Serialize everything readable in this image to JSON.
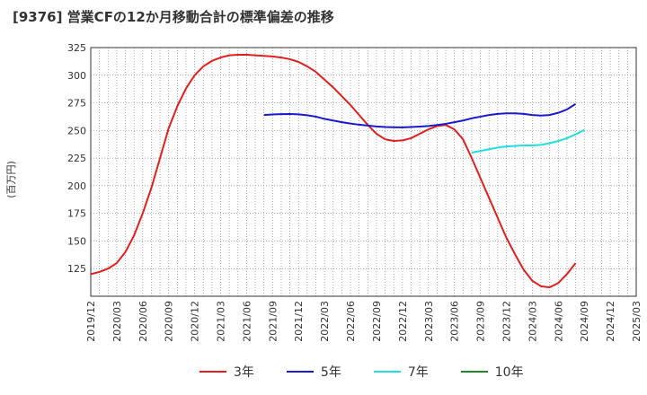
{
  "chart_data": {
    "type": "line",
    "title": "[9376]  営業CFの12か月移動合計の標準偏差の推移",
    "ylabel": "(百万円)",
    "ylim": [
      100,
      325
    ],
    "yticks": [
      125,
      150,
      175,
      200,
      225,
      250,
      275,
      300,
      325
    ],
    "x_start": "2019-12",
    "x_end": "2025-03",
    "xtick_labels": [
      "2019/12",
      "2020/03",
      "2020/06",
      "2020/09",
      "2020/12",
      "2021/03",
      "2021/06",
      "2021/09",
      "2021/12",
      "2022/03",
      "2022/06",
      "2022/09",
      "2022/12",
      "2023/03",
      "2023/06",
      "2023/09",
      "2023/12",
      "2024/03",
      "2024/06",
      "2024/09",
      "2024/12",
      "2025/03"
    ],
    "grid": true,
    "legend_position": "bottom",
    "series": [
      {
        "name": "3年",
        "color": "#e02020",
        "points": [
          [
            "2019-12",
            120
          ],
          [
            "2020-01",
            122
          ],
          [
            "2020-02",
            125
          ],
          [
            "2020-03",
            130
          ],
          [
            "2020-04",
            140
          ],
          [
            "2020-05",
            155
          ],
          [
            "2020-06",
            175
          ],
          [
            "2020-07",
            198
          ],
          [
            "2020-08",
            225
          ],
          [
            "2020-09",
            252
          ],
          [
            "2020-10",
            272
          ],
          [
            "2020-11",
            288
          ],
          [
            "2020-12",
            300
          ],
          [
            "2021-01",
            308
          ],
          [
            "2021-02",
            313
          ],
          [
            "2021-03",
            316
          ],
          [
            "2021-04",
            318
          ],
          [
            "2021-05",
            318.5
          ],
          [
            "2021-06",
            318.5
          ],
          [
            "2021-07",
            318
          ],
          [
            "2021-08",
            317.5
          ],
          [
            "2021-09",
            317
          ],
          [
            "2021-10",
            316
          ],
          [
            "2021-11",
            314.5
          ],
          [
            "2021-12",
            312
          ],
          [
            "2022-01",
            308
          ],
          [
            "2022-02",
            303
          ],
          [
            "2022-03",
            296
          ],
          [
            "2022-04",
            289
          ],
          [
            "2022-05",
            281
          ],
          [
            "2022-06",
            273
          ],
          [
            "2022-07",
            264
          ],
          [
            "2022-08",
            255
          ],
          [
            "2022-09",
            247
          ],
          [
            "2022-10",
            242
          ],
          [
            "2022-11",
            240.5
          ],
          [
            "2022-12",
            241
          ],
          [
            "2023-01",
            243
          ],
          [
            "2023-02",
            247
          ],
          [
            "2023-03",
            251
          ],
          [
            "2023-04",
            254
          ],
          [
            "2023-05",
            255
          ],
          [
            "2023-06",
            251
          ],
          [
            "2023-07",
            242
          ],
          [
            "2023-08",
            225
          ],
          [
            "2023-09",
            207
          ],
          [
            "2023-10",
            189
          ],
          [
            "2023-11",
            171
          ],
          [
            "2023-12",
            153
          ],
          [
            "2024-01",
            138
          ],
          [
            "2024-02",
            124
          ],
          [
            "2024-03",
            114
          ],
          [
            "2024-04",
            109
          ],
          [
            "2024-05",
            108
          ],
          [
            "2024-06",
            112
          ],
          [
            "2024-07",
            120
          ],
          [
            "2024-08",
            130
          ]
        ]
      },
      {
        "name": "5年",
        "color": "#1a1acc",
        "points": [
          [
            "2021-08",
            264
          ],
          [
            "2021-09",
            264.5
          ],
          [
            "2021-10",
            264.8
          ],
          [
            "2021-11",
            264.9
          ],
          [
            "2021-12",
            264.6
          ],
          [
            "2022-01",
            263.8
          ],
          [
            "2022-02",
            262.5
          ],
          [
            "2022-03",
            260.5
          ],
          [
            "2022-04",
            259
          ],
          [
            "2022-05",
            257.5
          ],
          [
            "2022-06",
            256.3
          ],
          [
            "2022-07",
            255.2
          ],
          [
            "2022-08",
            254.4
          ],
          [
            "2022-09",
            253.6
          ],
          [
            "2022-10",
            253.1
          ],
          [
            "2022-11",
            252.9
          ],
          [
            "2022-12",
            252.8
          ],
          [
            "2023-01",
            253.1
          ],
          [
            "2023-02",
            253.5
          ],
          [
            "2023-03",
            254
          ],
          [
            "2023-04",
            255
          ],
          [
            "2023-05",
            256
          ],
          [
            "2023-06",
            257.5
          ],
          [
            "2023-07",
            259
          ],
          [
            "2023-08",
            261
          ],
          [
            "2023-09",
            262.5
          ],
          [
            "2023-10",
            264
          ],
          [
            "2023-11",
            265
          ],
          [
            "2023-12",
            265.5
          ],
          [
            "2024-01",
            265.5
          ],
          [
            "2024-02",
            265
          ],
          [
            "2024-03",
            264
          ],
          [
            "2024-04",
            263.5
          ],
          [
            "2024-05",
            264
          ],
          [
            "2024-06",
            266
          ],
          [
            "2024-07",
            269
          ],
          [
            "2024-08",
            274
          ]
        ]
      },
      {
        "name": "7年",
        "color": "#22dddd",
        "points": [
          [
            "2023-08",
            230
          ],
          [
            "2023-09",
            231.5
          ],
          [
            "2023-10",
            233
          ],
          [
            "2023-11",
            234.5
          ],
          [
            "2023-12",
            235.5
          ],
          [
            "2024-01",
            236
          ],
          [
            "2024-02",
            236.5
          ],
          [
            "2024-03",
            236.5
          ],
          [
            "2024-04",
            237
          ],
          [
            "2024-05",
            238.5
          ],
          [
            "2024-06",
            240.5
          ],
          [
            "2024-07",
            243
          ],
          [
            "2024-08",
            246.5
          ],
          [
            "2024-09",
            250.5
          ]
        ]
      },
      {
        "name": "10年",
        "color": "#228822",
        "points": []
      }
    ]
  }
}
